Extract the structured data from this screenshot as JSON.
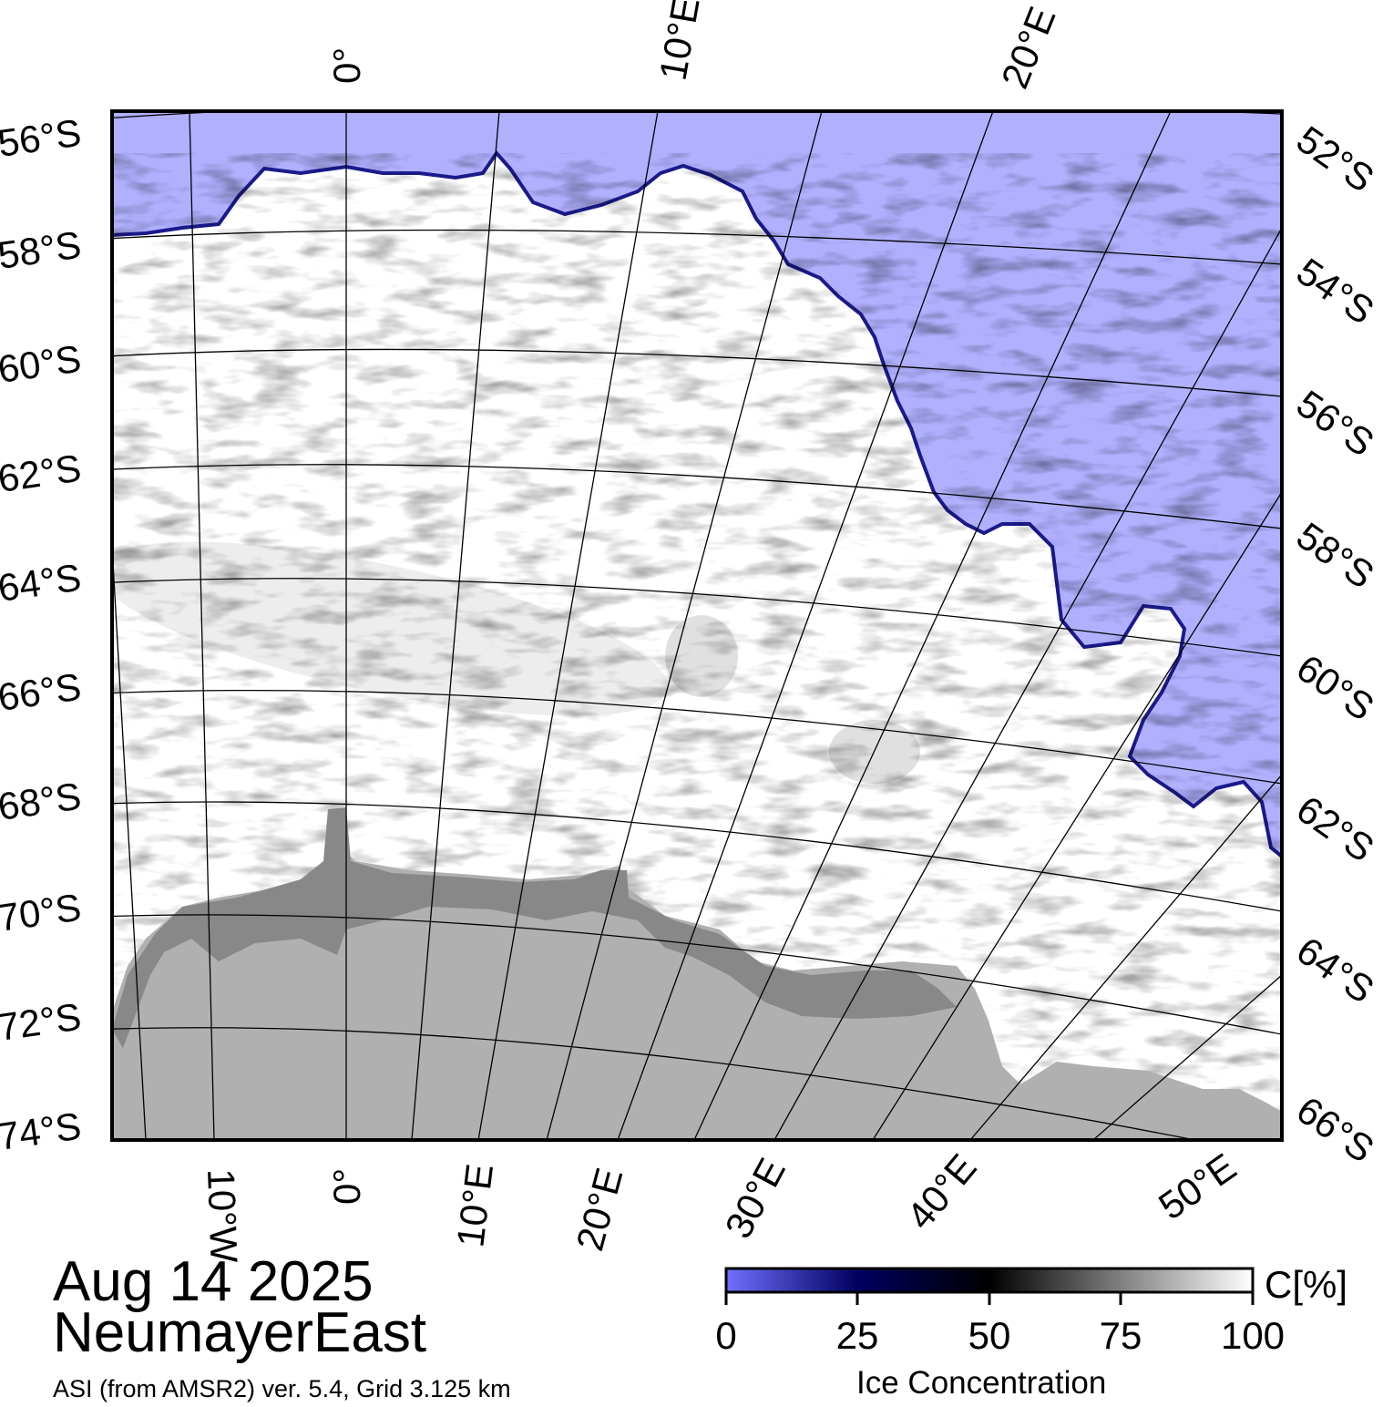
{
  "map": {
    "date": "Aug 14 2025",
    "region": "NeumayerEast",
    "source": "ASI (from AMSR2) ver. 5.4,  Grid 3.125 km",
    "left_lat_labels": [
      "56°S",
      "58°S",
      "60°S",
      "62°S",
      "64°S",
      "66°S",
      "68°S",
      "70°S",
      "72°S",
      "74°S"
    ],
    "right_lat_labels": [
      "52°S",
      "54°S",
      "56°S",
      "58°S",
      "60°S",
      "62°S",
      "64°S",
      "66°S"
    ],
    "top_lon_labels": [
      "0°",
      "10°E",
      "20°E"
    ],
    "bottom_lon_labels": [
      "10°W",
      "0°",
      "10°E",
      "20°E",
      "30°E",
      "40°E",
      "50°E"
    ],
    "colors": {
      "open_water": "#b0b0ff",
      "land": "#b0b0b0",
      "ice_shelf": "#888888",
      "ice_edge": "#1a1a8c",
      "full_ice": "#ffffff"
    }
  },
  "colorbar": {
    "title": "Ice Concentration",
    "unit": "C[%]",
    "ticks": [
      "0",
      "25",
      "50",
      "75",
      "100"
    ],
    "range": [
      0,
      100
    ],
    "gradient_stops": [
      "#7070ff",
      "#000060",
      "#000000",
      "#808080",
      "#ffffff"
    ]
  }
}
